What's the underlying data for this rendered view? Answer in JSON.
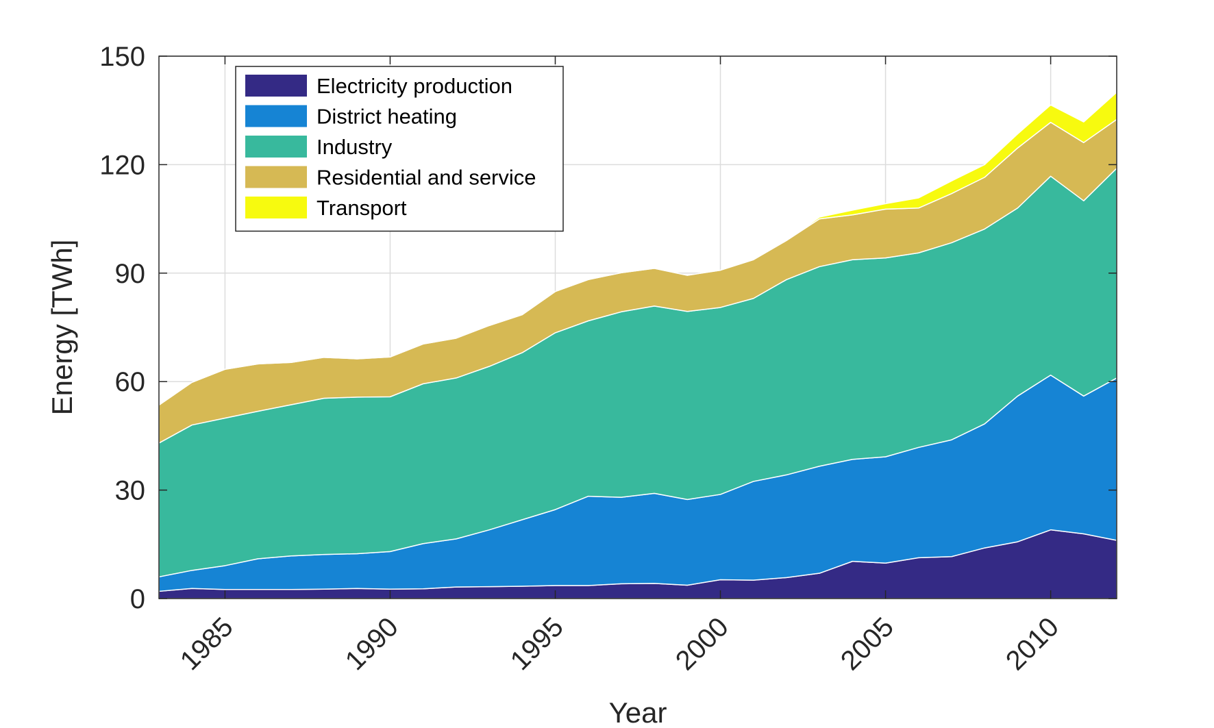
{
  "chart_data": {
    "type": "area",
    "stacked": true,
    "xlabel": "Year",
    "ylabel": "Energy [TWh]",
    "xlim": [
      1983,
      2012
    ],
    "ylim": [
      0,
      150
    ],
    "xticks": [
      "1985",
      "1990",
      "1995",
      "2000",
      "2005",
      "2010"
    ],
    "yticks": [
      "0",
      "30",
      "60",
      "90",
      "120",
      "150"
    ],
    "grid": true,
    "legend_position": "top-left",
    "x": [
      1983,
      1984,
      1985,
      1986,
      1987,
      1988,
      1989,
      1990,
      1991,
      1992,
      1993,
      1994,
      1995,
      1996,
      1997,
      1998,
      1999,
      2000,
      2001,
      2002,
      2003,
      2004,
      2005,
      2006,
      2007,
      2008,
      2009,
      2010,
      2011,
      2012
    ],
    "series": [
      {
        "name": "Electricity production",
        "color": "#342a85",
        "values": [
          2.0,
          2.8,
          2.5,
          2.5,
          2.5,
          2.6,
          2.8,
          2.6,
          2.7,
          3.2,
          3.3,
          3.4,
          3.6,
          3.6,
          4.1,
          4.2,
          3.7,
          5.2,
          5.1,
          5.8,
          7.0,
          10.3,
          9.8,
          11.3,
          11.6,
          14.0,
          15.7,
          19.0,
          17.9,
          16.1
        ]
      },
      {
        "name": "District heating",
        "color": "#1684d4",
        "values": [
          4.0,
          5.0,
          6.6,
          8.5,
          9.3,
          9.6,
          9.6,
          10.4,
          12.5,
          13.3,
          15.7,
          18.4,
          21.0,
          24.7,
          23.9,
          24.9,
          23.7,
          23.6,
          27.3,
          28.4,
          29.6,
          28.2,
          29.4,
          30.5,
          32.3,
          34.3,
          40.3,
          42.8,
          38.1,
          44.9
        ]
      },
      {
        "name": "Industry",
        "color": "#38b99d",
        "values": [
          37.0,
          40.2,
          40.8,
          40.8,
          41.8,
          43.2,
          43.3,
          42.8,
          44.2,
          44.5,
          45.2,
          46.2,
          48.9,
          48.5,
          51.3,
          51.8,
          52.0,
          51.7,
          50.6,
          54.0,
          55.2,
          55.2,
          55.0,
          53.8,
          54.5,
          53.9,
          52.0,
          55.0,
          54.0,
          58.0
        ]
      },
      {
        "name": "Residential and service",
        "color": "#d6b954",
        "values": [
          10.5,
          11.8,
          13.5,
          13.1,
          11.7,
          11.3,
          10.6,
          11.0,
          11.0,
          11.0,
          11.3,
          10.5,
          11.4,
          11.4,
          10.8,
          10.4,
          10.0,
          10.3,
          10.7,
          10.8,
          13.2,
          12.4,
          13.5,
          12.4,
          13.6,
          14.3,
          16.6,
          14.9,
          16.1,
          13.5
        ]
      },
      {
        "name": "Transport",
        "color": "#f7fa0f",
        "values": [
          0,
          0,
          0,
          0,
          0,
          0,
          0,
          0,
          0,
          0,
          0,
          0,
          0,
          0,
          0,
          0,
          0,
          0,
          0,
          0,
          0.5,
          1.3,
          1.5,
          2.8,
          3.5,
          3.5,
          3.9,
          4.8,
          5.7,
          7.5
        ]
      }
    ]
  }
}
